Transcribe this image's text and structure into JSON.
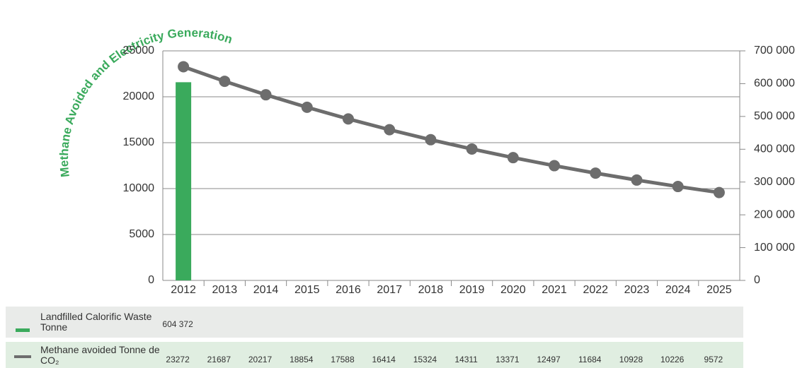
{
  "chart_data": {
    "type": "combo",
    "title": "Methane Avoided and Electricity Generation",
    "categories": [
      "2012",
      "2013",
      "2014",
      "2015",
      "2016",
      "2017",
      "2018",
      "2019",
      "2020",
      "2021",
      "2022",
      "2023",
      "2024",
      "2025"
    ],
    "series": [
      {
        "name": "Landfilled Calorific Waste Tonne",
        "type": "bar",
        "axis": "y2",
        "color": "#3aaa5c",
        "values": [
          604372,
          null,
          null,
          null,
          null,
          null,
          null,
          null,
          null,
          null,
          null,
          null,
          null,
          null
        ],
        "value_labels": [
          "604 372",
          null,
          null,
          null,
          null,
          null,
          null,
          null,
          null,
          null,
          null,
          null,
          null,
          null
        ]
      },
      {
        "name": "Methane avoided Tonne de CO₂",
        "type": "line",
        "axis": "y",
        "color": "#6d6d6d",
        "values": [
          23272,
          21687,
          20217,
          18854,
          17588,
          16414,
          15324,
          14311,
          13371,
          12497,
          11684,
          10928,
          10226,
          9572
        ]
      }
    ],
    "ylim": [
      0,
      25000
    ],
    "yticks": [
      0,
      5000,
      10000,
      15000,
      20000,
      25000
    ],
    "y2lim": [
      0,
      700000
    ],
    "y2ticks": [
      0,
      {
        "value": 100000,
        "label": "100 000"
      },
      {
        "value": 200000,
        "label": "200 000"
      },
      {
        "value": 300000,
        "label": "300 000"
      },
      {
        "value": 400000,
        "label": "400 000"
      },
      {
        "value": 500000,
        "label": "500 000"
      },
      {
        "value": 600000,
        "label": "600 000"
      },
      {
        "value": 700000,
        "label": "700 000"
      }
    ],
    "grid": true
  }
}
